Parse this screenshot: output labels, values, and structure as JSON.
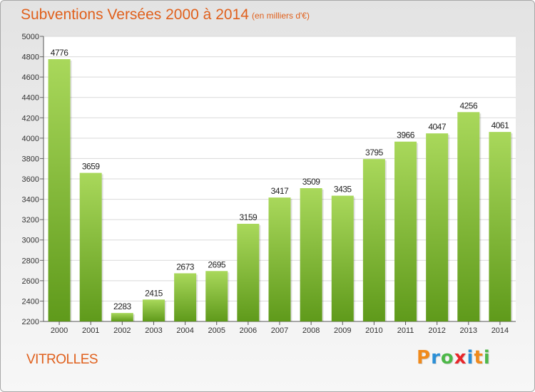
{
  "title": "Subventions Versées 2000 à 2014",
  "subtitle": "(en milliers d'€)",
  "commune": "VITROLLES",
  "logo": {
    "letters": [
      "P",
      "r",
      "o",
      "x",
      "i",
      "t",
      "i"
    ],
    "colors": [
      "#f08a1c",
      "#2b8fd6",
      "#4db848",
      "#e8262a",
      "#2b8fd6",
      "#f08a1c",
      "#4db848"
    ]
  },
  "colors": {
    "bar_light": "#a9d85b",
    "bar_dark": "#5f9a1b",
    "text": "#e0601c"
  },
  "chart_data": {
    "type": "bar",
    "title": "Subventions Versées 2000 à 2014",
    "subtitle": "(en milliers d'€)",
    "categories": [
      "2000",
      "2001",
      "2002",
      "2003",
      "2004",
      "2005",
      "2006",
      "2007",
      "2008",
      "2009",
      "2010",
      "2011",
      "2012",
      "2013",
      "2014"
    ],
    "values": [
      4776,
      3659,
      2283,
      2415,
      2673,
      2695,
      3159,
      3417,
      3509,
      3435,
      3795,
      3966,
      4047,
      4256,
      4061
    ],
    "ylim": [
      2200,
      5000
    ],
    "yticks": [
      2200,
      2400,
      2600,
      2800,
      3000,
      3200,
      3400,
      3600,
      3800,
      4000,
      4200,
      4400,
      4600,
      4800,
      5000
    ],
    "grid": true,
    "legend": "none"
  }
}
